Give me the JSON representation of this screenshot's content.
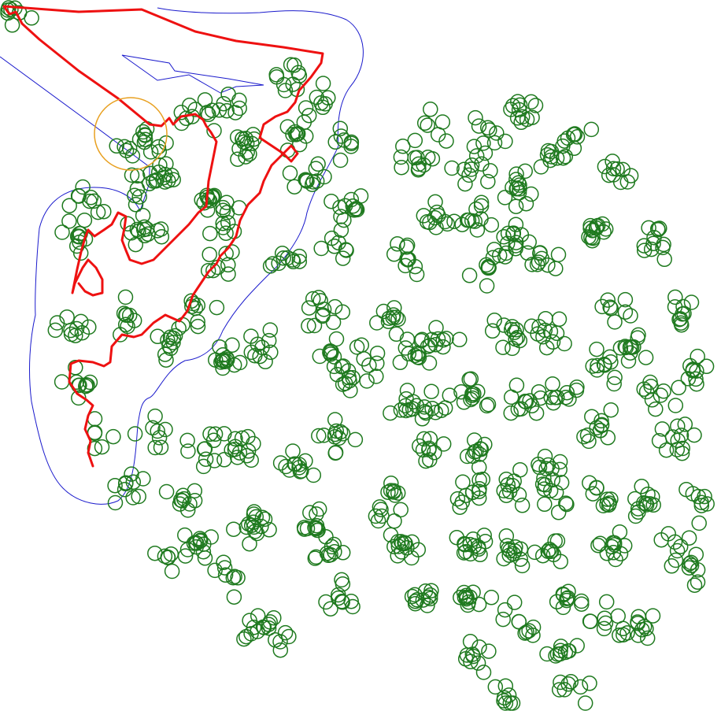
{
  "map": {
    "background": "#ffffff",
    "colors": {
      "route": "#ee1111",
      "boundary": "#1a1acc",
      "highlight_ring": "#e8a020",
      "tree_markers": "#1f7a1f"
    },
    "layers": [
      {
        "id": "route",
        "type": "polyline"
      },
      {
        "id": "boundary",
        "type": "polyline"
      },
      {
        "id": "highlight_ring",
        "type": "circle"
      },
      {
        "id": "tree_markers",
        "type": "points"
      }
    ]
  }
}
